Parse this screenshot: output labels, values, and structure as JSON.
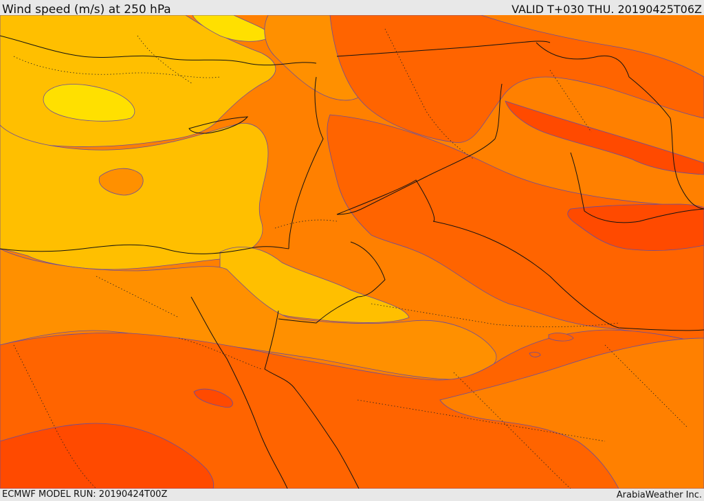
{
  "header": {
    "title": "Wind speed (m/s) at 250 hPa",
    "valid_time": "VALID T+030 THU. 20190425T06Z"
  },
  "footer": {
    "model_run": "ECMWF MODEL RUN: 20190424T00Z",
    "credit": "ArabiaWeather Inc."
  },
  "map": {
    "variable": "wind speed",
    "units": "m/s",
    "pressure_level_hPa": 250,
    "colors": {
      "band_lightest": "#ffe000",
      "band_light": "#ffbf00",
      "band_mid": "#ff9000",
      "band_midhigh": "#ff8000",
      "band_high": "#ff6400",
      "band_highest": "#ff4a00",
      "contour_line": "#6a4c9c",
      "border_line": "#111111"
    }
  }
}
